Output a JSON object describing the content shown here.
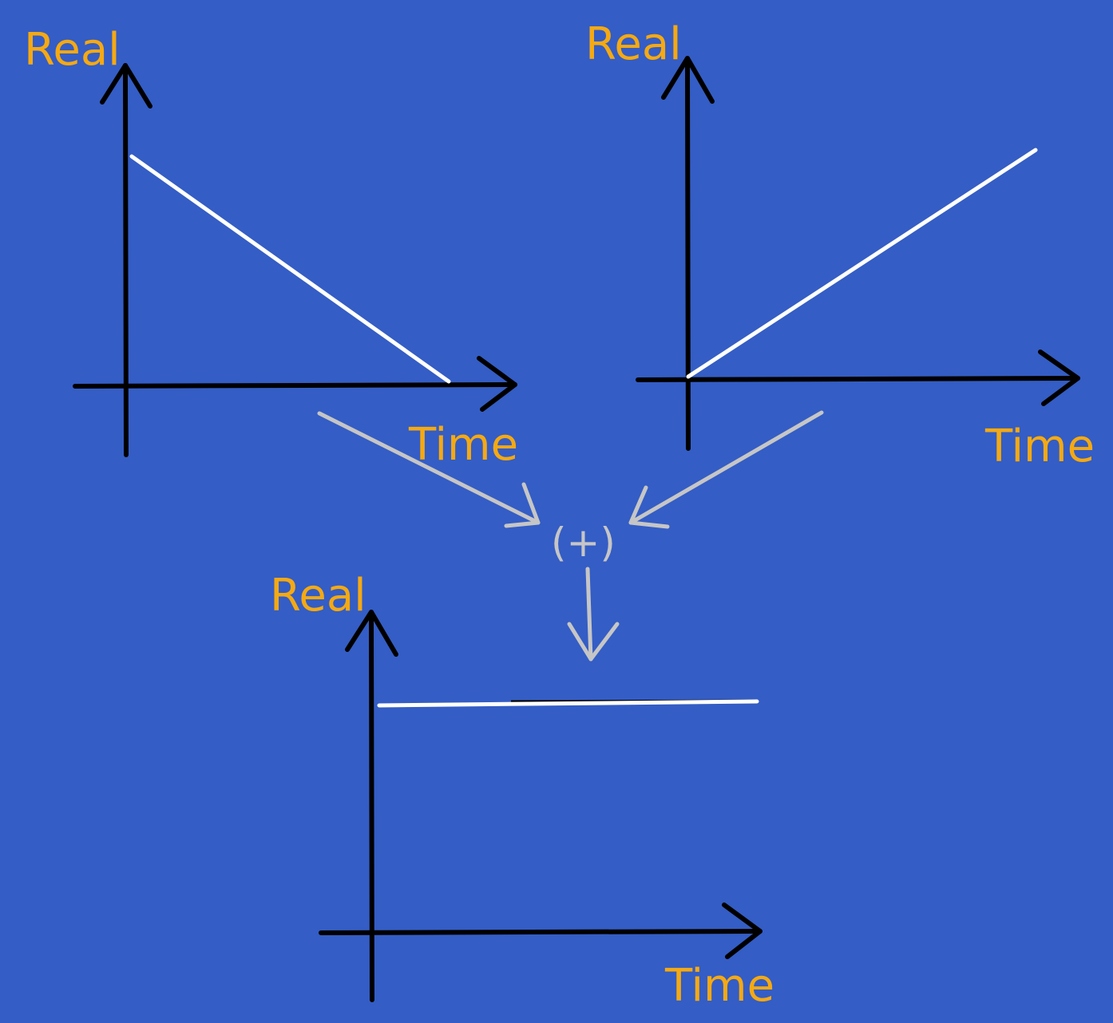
{
  "colors": {
    "background": "#345dc5",
    "label": "#f5a912",
    "axis": "#000000",
    "signal": "#ffffff",
    "flow": "#c6c6c6"
  },
  "graphs": {
    "top_left": {
      "y_label": "Real",
      "x_label": "Time",
      "signal": "decreasing ramp"
    },
    "top_right": {
      "y_label": "Real",
      "x_label": "Time",
      "signal": "increasing ramp"
    },
    "bottom": {
      "y_label": "Real",
      "x_label": "Time",
      "signal": "constant"
    }
  },
  "operator": {
    "label": "(+)"
  }
}
